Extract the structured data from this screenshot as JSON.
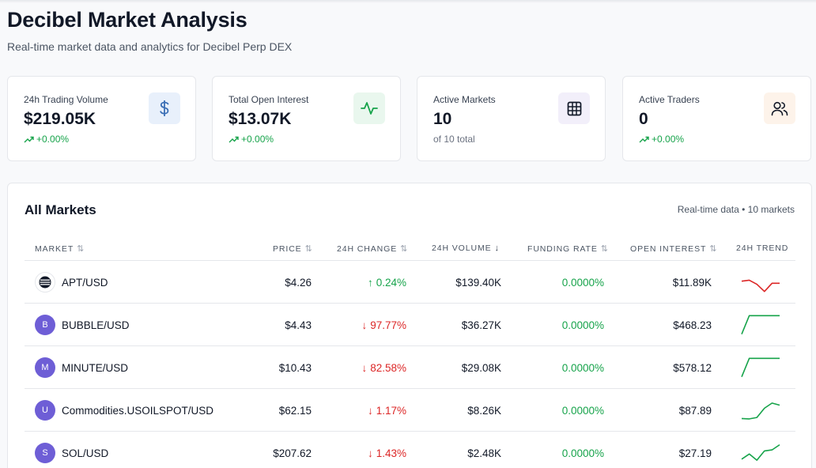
{
  "header": {
    "title": "Decibel Market Analysis",
    "subtitle": "Real-time market data and analytics for Decibel Perp DEX"
  },
  "stats": [
    {
      "label": "24h Trading Volume",
      "value": "$219.05K",
      "change": "+0.00%",
      "icon": "dollar-icon",
      "icon_bg": "#e8f0fb",
      "icon_color": "#3b6fb6"
    },
    {
      "label": "Total Open Interest",
      "value": "$13.07K",
      "change": "+0.00%",
      "icon": "activity-icon",
      "icon_bg": "#e9f7ee",
      "icon_color": "#16a34a"
    },
    {
      "label": "Active Markets",
      "value": "10",
      "change": "of 10 total",
      "icon": "grid-icon",
      "icon_bg": "#f2effa",
      "icon_color": "#111827"
    },
    {
      "label": "Active Traders",
      "value": "0",
      "change": "+0.00%",
      "icon": "users-icon",
      "icon_bg": "#fdf3ea",
      "icon_color": "#111827"
    }
  ],
  "markets_table": {
    "title": "All Markets",
    "meta": "Real-time data • 10 markets",
    "columns": {
      "market": "MARKET",
      "price": "PRICE",
      "change": "24H CHANGE",
      "volume": "24H VOLUME",
      "funding": "FUNDING RATE",
      "open_interest": "OPEN INTEREST",
      "trend": "24H TREND"
    },
    "rows": [
      {
        "avatar": "",
        "market": "APT/USD",
        "price": "$4.26",
        "change": "0.24%",
        "direction": "up",
        "volume": "$139.40K",
        "funding": "0.0000%",
        "open_interest": "$11.89K",
        "trend_color": "#dc2626",
        "trend": [
          0.55,
          0.6,
          0.4,
          0.05,
          0.45,
          0.45
        ]
      },
      {
        "avatar": "B",
        "market": "BUBBLE/USD",
        "price": "$4.43",
        "change": "97.77%",
        "direction": "down",
        "volume": "$36.27K",
        "funding": "0.0000%",
        "open_interest": "$468.23",
        "trend_color": "#16a34a",
        "trend": [
          0.05,
          0.95,
          0.95,
          0.95,
          0.95,
          0.95
        ]
      },
      {
        "avatar": "M",
        "market": "MINUTE/USD",
        "price": "$10.43",
        "change": "82.58%",
        "direction": "down",
        "volume": "$29.08K",
        "funding": "0.0000%",
        "open_interest": "$578.12",
        "trend_color": "#16a34a",
        "trend": [
          0.05,
          0.95,
          0.95,
          0.95,
          0.95,
          0.95
        ]
      },
      {
        "avatar": "U",
        "market": "Commodities.USOILSPOT/USD",
        "price": "$62.15",
        "change": "1.17%",
        "direction": "down",
        "volume": "$8.26K",
        "funding": "0.0000%",
        "open_interest": "$87.89",
        "trend_color": "#16a34a",
        "trend": [
          0.1,
          0.08,
          0.15,
          0.6,
          0.85,
          0.75
        ]
      },
      {
        "avatar": "S",
        "market": "SOL/USD",
        "price": "$207.62",
        "change": "1.43%",
        "direction": "down",
        "volume": "$2.48K",
        "funding": "0.0000%",
        "open_interest": "$27.19",
        "trend_color": "#16a34a",
        "trend": [
          0.2,
          0.45,
          0.15,
          0.6,
          0.65,
          0.9
        ]
      }
    ],
    "avatar_color": "#6e5ed6"
  }
}
